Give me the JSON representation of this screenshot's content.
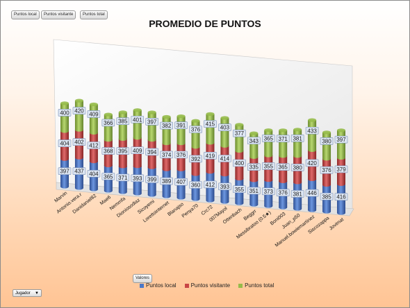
{
  "filters": {
    "field_buttons": [
      "Puntos local",
      "Puntos visitante",
      "Puntos total"
    ],
    "values_button": "Valores",
    "row_dropdown": "Jugador"
  },
  "colors": {
    "local": "#4a78c8",
    "visitante": "#c84646",
    "total": "#96bb4a"
  },
  "chart_data": {
    "type": "bar",
    "stacked": true,
    "title": "PROMEDIO DE PUNTOS",
    "legend_position": "bottom",
    "categories": [
      "Marvin",
      "Antonio.vera.r",
      "Danidaniel82",
      "Mae6",
      "Nemmfa",
      "Dioniosodiaz",
      "Sicoyemi",
      "Lorettointernet",
      "Blanajso",
      "Penya70",
      "Crc72",
      "007Mayol",
      "Ottenbach",
      "Beggrr",
      "Messibratoo (0.5★)",
      "Boni003",
      "Juan_p50",
      "Manuel.bowiemartinez",
      "Siscozappa",
      "Jovimat"
    ],
    "series": [
      {
        "name": "Puntos local",
        "values": [
          397,
          437,
          404,
          365,
          371,
          393,
          399,
          389,
          407,
          360,
          412,
          393,
          355,
          351,
          373,
          376,
          381,
          446,
          385,
          416
        ]
      },
      {
        "name": "Puntos visitante",
        "values": [
          404,
          402,
          412,
          368,
          395,
          409,
          394,
          374,
          376,
          392,
          419,
          414,
          400,
          335,
          355,
          365,
          380,
          420,
          376,
          379
        ]
      },
      {
        "name": "Puntos total",
        "values": [
          400,
          420,
          409,
          366,
          385,
          401,
          397,
          382,
          391,
          376,
          415,
          403,
          377,
          343,
          365,
          371,
          381,
          433,
          380,
          397
        ]
      }
    ]
  }
}
